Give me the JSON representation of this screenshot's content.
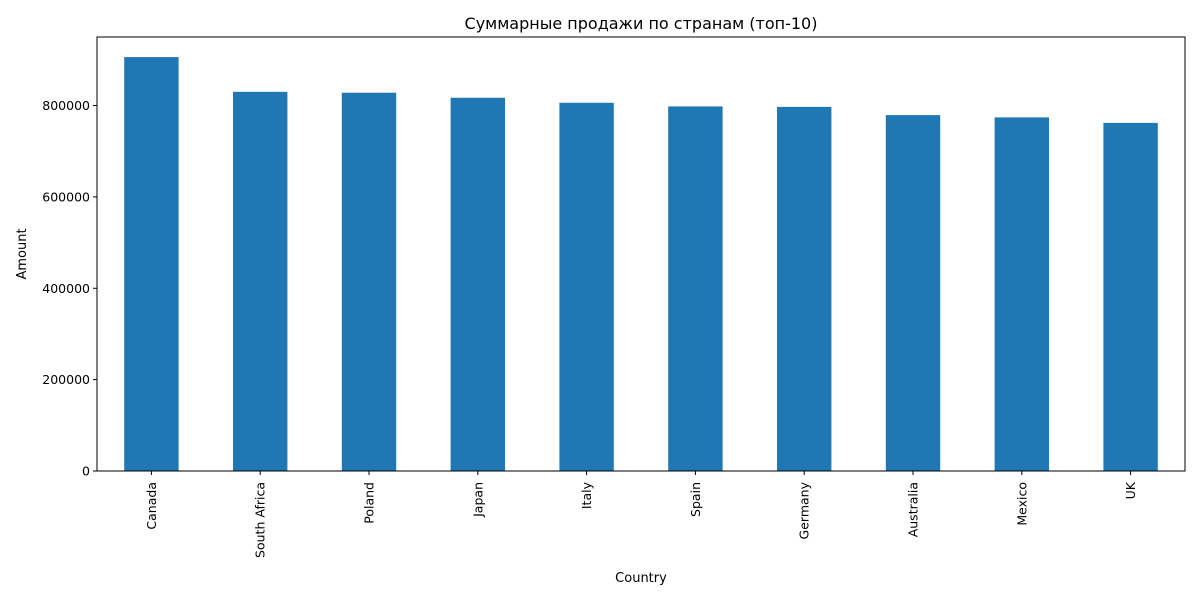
{
  "chart_data": {
    "type": "bar",
    "title": "Суммарные продажи по странам (топ-10)",
    "xlabel": "Country",
    "ylabel": "Amount",
    "categories": [
      "Canada",
      "South Africa",
      "Poland",
      "Japan",
      "Italy",
      "Spain",
      "Germany",
      "Australia",
      "Mexico",
      "UK"
    ],
    "values": [
      906000,
      830000,
      828000,
      817000,
      806000,
      798000,
      797000,
      779000,
      774000,
      762000
    ],
    "ylim": [
      0,
      950000
    ],
    "yticks": [
      0,
      200000,
      400000,
      600000,
      800000
    ],
    "ytick_labels": [
      "0",
      "200000",
      "400000",
      "600000",
      "800000"
    ],
    "grid": false,
    "bar_color": "#1f77b4",
    "x_tick_rotation": "vertical"
  }
}
